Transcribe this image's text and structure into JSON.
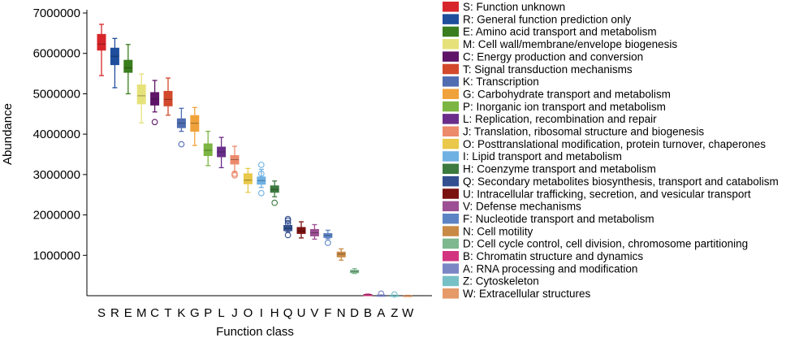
{
  "chart_data": {
    "type": "boxplot",
    "xlabel": "Function class",
    "ylabel": "Abundance",
    "ylim": [
      0,
      7000000
    ],
    "yticks": [
      1000000,
      2000000,
      3000000,
      4000000,
      5000000,
      6000000,
      7000000
    ],
    "ytick_labels": [
      "1000000",
      "2000000",
      "3000000",
      "4000000",
      "5000000",
      "6000000",
      "7000000"
    ],
    "legend_position": "right",
    "categories": [
      "S",
      "R",
      "E",
      "M",
      "C",
      "T",
      "K",
      "G",
      "P",
      "L",
      "J",
      "O",
      "I",
      "H",
      "Q",
      "U",
      "V",
      "F",
      "N",
      "D",
      "B",
      "A",
      "Z",
      "W"
    ],
    "legend": [
      "S: Function unknown",
      "R: General function prediction only",
      "E: Amino acid transport and metabolism",
      "M: Cell wall/membrane/envelope biogenesis",
      "C: Energy production and conversion",
      "T: Signal transduction mechanisms",
      "K: Transcription",
      "G: Carbohydrate transport and metabolism",
      "P: Inorganic ion transport and metabolism",
      "L: Replication, recombination and repair",
      "J: Translation, ribosomal structure and biogenesis",
      "O: Posttranslational modification, protein turnover, chaperones",
      "I: Lipid transport and metabolism",
      "H: Coenzyme transport and metabolism",
      "Q: Secondary metabolites biosynthesis, transport and catabolism",
      "U: Intracellular trafficking, secretion, and vesicular transport",
      "V: Defense mechanisms",
      "F: Nucleotide transport and metabolism",
      "N: Cell motility",
      "D: Cell cycle control, cell division, chromosome partitioning",
      "B: Chromatin structure and dynamics",
      "A: RNA processing and modification",
      "Z: Cytoskeleton",
      "W: Extracellular structures"
    ],
    "colors": [
      "#d7262b",
      "#1f4e9c",
      "#3a7d1e",
      "#e6e27a",
      "#5e1467",
      "#d2492c",
      "#4f6db0",
      "#f0a23a",
      "#7cb542",
      "#6a2e8a",
      "#ec8a6c",
      "#e9c84a",
      "#6fb1e3",
      "#3d7a3f",
      "#334f8f",
      "#7b1111",
      "#9c4f92",
      "#5c84c4",
      "#c98a45",
      "#7db88f",
      "#d23480",
      "#7b86c5",
      "#77c0c6",
      "#e59a68"
    ],
    "series": [
      {
        "min": 5450000,
        "q1": 6080000,
        "median": 6230000,
        "q3": 6470000,
        "max": 6720000,
        "outliers": []
      },
      {
        "min": 5150000,
        "q1": 5720000,
        "median": 5930000,
        "q3": 6130000,
        "max": 6370000,
        "outliers": []
      },
      {
        "min": 5000000,
        "q1": 5530000,
        "median": 5640000,
        "q3": 5830000,
        "max": 6220000,
        "outliers": []
      },
      {
        "min": 4280000,
        "q1": 4750000,
        "median": 4950000,
        "q3": 5220000,
        "max": 5490000,
        "outliers": []
      },
      {
        "min": 4550000,
        "q1": 4720000,
        "median": 4870000,
        "q3": 5030000,
        "max": 5330000,
        "outliers": [
          4300000
        ]
      },
      {
        "min": 4470000,
        "q1": 4700000,
        "median": 4860000,
        "q3": 5060000,
        "max": 5390000,
        "outliers": []
      },
      {
        "min": 4070000,
        "q1": 4160000,
        "median": 4270000,
        "q3": 4380000,
        "max": 4640000,
        "outliers": [
          3750000
        ]
      },
      {
        "min": 3720000,
        "q1": 4070000,
        "median": 4270000,
        "q3": 4460000,
        "max": 4660000,
        "outliers": []
      },
      {
        "min": 3220000,
        "q1": 3470000,
        "median": 3600000,
        "q3": 3760000,
        "max": 4070000,
        "outliers": []
      },
      {
        "min": 3170000,
        "q1": 3440000,
        "median": 3560000,
        "q3": 3680000,
        "max": 3920000,
        "outliers": []
      },
      {
        "min": 3070000,
        "q1": 3260000,
        "median": 3370000,
        "q3": 3470000,
        "max": 3700000,
        "outliers": [
          2980000,
          3020000
        ]
      },
      {
        "min": 2560000,
        "q1": 2770000,
        "median": 2860000,
        "q3": 3020000,
        "max": 3150000,
        "outliers": []
      },
      {
        "min": 2680000,
        "q1": 2760000,
        "median": 2850000,
        "q3": 2940000,
        "max": 3130000,
        "outliers": [
          2540000,
          3020000,
          3240000
        ]
      },
      {
        "min": 2450000,
        "q1": 2560000,
        "median": 2630000,
        "q3": 2720000,
        "max": 2840000,
        "outliers": [
          2300000
        ]
      },
      {
        "min": 1580000,
        "q1": 1610000,
        "median": 1670000,
        "q3": 1740000,
        "max": 1800000,
        "outliers": [
          1500000,
          1800000,
          1860000,
          1900000
        ]
      },
      {
        "min": 1430000,
        "q1": 1540000,
        "median": 1600000,
        "q3": 1690000,
        "max": 1830000,
        "outliers": []
      },
      {
        "min": 1400000,
        "q1": 1480000,
        "median": 1560000,
        "q3": 1640000,
        "max": 1760000,
        "outliers": []
      },
      {
        "min": 1410000,
        "q1": 1440000,
        "median": 1490000,
        "q3": 1540000,
        "max": 1620000,
        "outliers": [
          1310000
        ]
      },
      {
        "min": 880000,
        "q1": 960000,
        "median": 1030000,
        "q3": 1080000,
        "max": 1160000,
        "outliers": []
      },
      {
        "min": 550000,
        "q1": 570000,
        "median": 600000,
        "q3": 630000,
        "max": 670000,
        "outliers": []
      },
      {
        "min": 10000,
        "q1": 20000,
        "median": 25000,
        "q3": 30000,
        "max": 40000,
        "outliers": []
      },
      {
        "min": 8000,
        "q1": 10000,
        "median": 12000,
        "q3": 14000,
        "max": 18000,
        "outliers": [
          50000
        ]
      },
      {
        "min": 6000,
        "q1": 8000,
        "median": 9000,
        "q3": 10000,
        "max": 12000,
        "outliers": [
          30000
        ]
      },
      {
        "min": 2000,
        "q1": 4000,
        "median": 5000,
        "q3": 6000,
        "max": 8000,
        "outliers": []
      }
    ]
  }
}
